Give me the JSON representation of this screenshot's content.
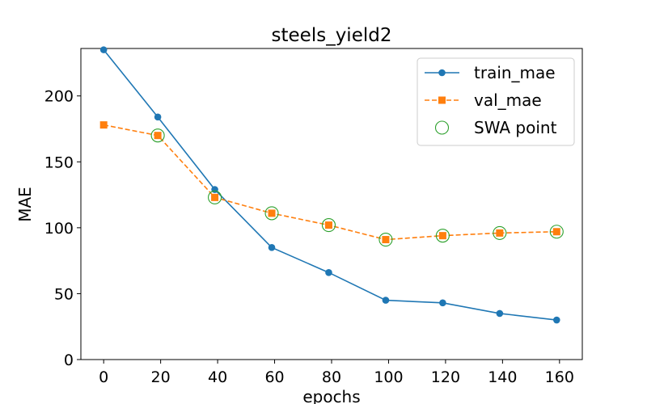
{
  "chart_data": {
    "type": "line",
    "title": "steels_yield2",
    "xlabel": "epochs",
    "ylabel": "MAE",
    "xlim": [
      -8,
      168
    ],
    "ylim": [
      0,
      236
    ],
    "xticks": [
      0,
      20,
      40,
      60,
      80,
      100,
      120,
      140,
      160
    ],
    "yticks": [
      0,
      50,
      100,
      150,
      200
    ],
    "grid": false,
    "legend_position": "top-right",
    "series": [
      {
        "name": "train_mae",
        "color": "#1f77b4",
        "marker": "circle",
        "linestyle": "solid",
        "x": [
          0,
          19,
          39,
          59,
          79,
          99,
          119,
          139,
          159
        ],
        "y": [
          235,
          184,
          129,
          85,
          66,
          45,
          43,
          35,
          30
        ]
      },
      {
        "name": "val_mae",
        "color": "#ff7f0e",
        "marker": "square",
        "linestyle": "dashed",
        "x": [
          0,
          19,
          39,
          59,
          79,
          99,
          119,
          139,
          159
        ],
        "y": [
          178,
          170,
          123,
          111,
          102,
          91,
          94,
          96,
          97
        ]
      },
      {
        "name": "SWA point",
        "color": "#2ca02c",
        "marker": "hollow-circle",
        "linestyle": "none",
        "x": [
          19,
          39,
          59,
          79,
          99,
          119,
          139,
          159
        ],
        "y": [
          170,
          123,
          111,
          102,
          91,
          94,
          96,
          97
        ]
      }
    ]
  }
}
